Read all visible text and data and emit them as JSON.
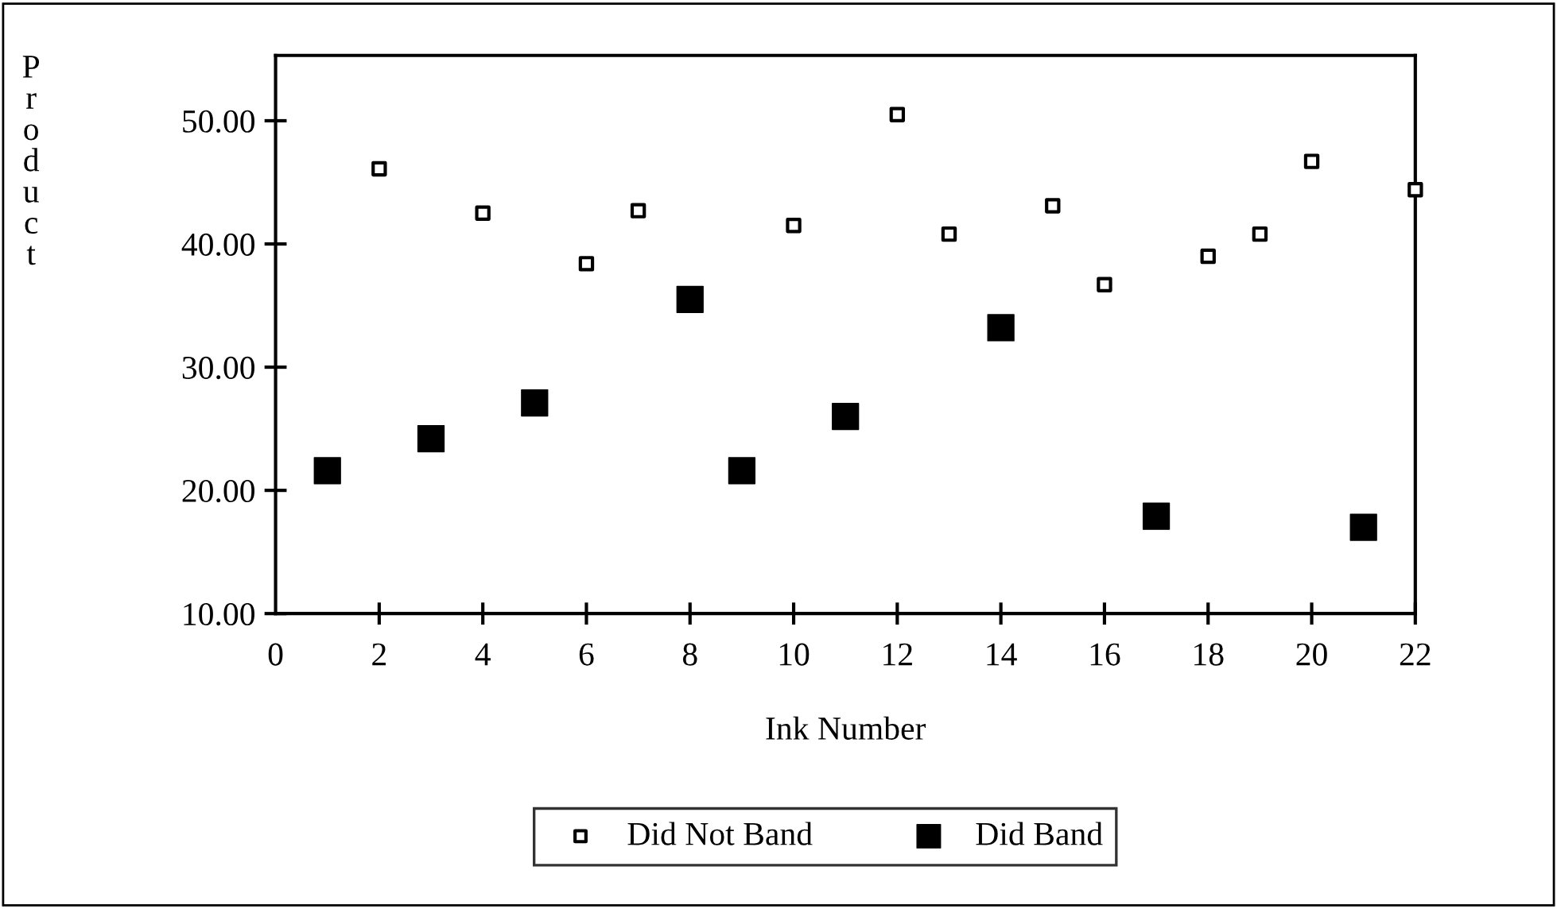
{
  "chart_data": {
    "type": "scatter",
    "xlabel": "Ink Number",
    "ylabel": "Product",
    "series": [
      {
        "name": "Did Not Band",
        "color": "#000000",
        "x": [
          2,
          4,
          6,
          7,
          10,
          12,
          13,
          15,
          16,
          18,
          19,
          20,
          22
        ],
        "values": [
          46.1,
          42.5,
          38.4,
          42.7,
          41.5,
          50.5,
          40.8,
          43.1,
          36.7,
          39.0,
          40.8,
          46.7,
          44.4
        ]
      },
      {
        "name": "Did Band",
        "color": "#000000",
        "x": [
          1,
          3,
          5,
          8,
          9,
          11,
          14,
          17,
          21
        ],
        "values": [
          21.6,
          24.2,
          27.1,
          35.5,
          21.6,
          26.0,
          33.2,
          17.9,
          17.0
        ]
      }
    ],
    "xlim": [
      0,
      22
    ],
    "xticks": [
      0,
      2,
      4,
      6,
      8,
      10,
      12,
      14,
      16,
      18,
      20,
      22
    ],
    "ylim": [
      10,
      55.3
    ],
    "yticks": [
      {
        "value": 10,
        "label": "10.00"
      },
      {
        "value": 20,
        "label": "20.00"
      },
      {
        "value": 30,
        "label": "30.00"
      },
      {
        "value": 40,
        "label": "40.00"
      },
      {
        "value": 50,
        "label": "50.00"
      }
    ],
    "marker": "square",
    "grid": false,
    "legend": "bottom"
  }
}
